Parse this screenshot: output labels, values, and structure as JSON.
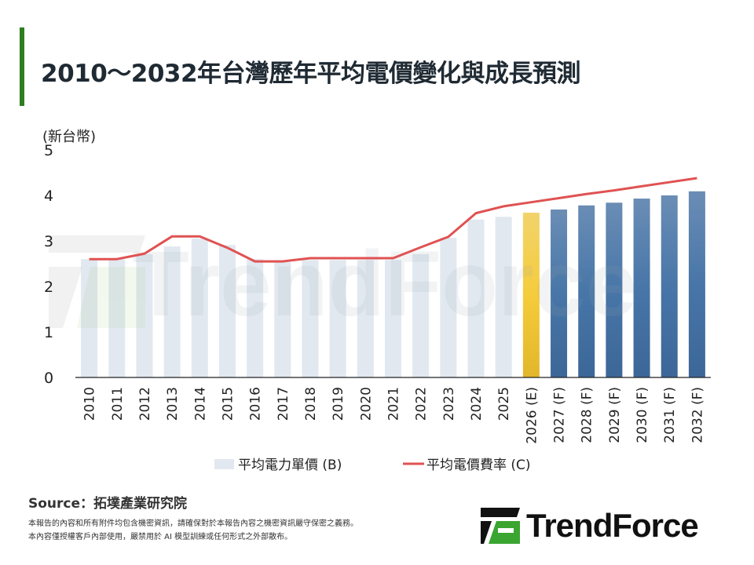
{
  "title": "2010～2032年台灣歷年平均電價變化與成長預測",
  "colors": {
    "accent": "#2e7d1e",
    "historical_bar": "#e1e8f0",
    "estimate_bar": "#f0c93a",
    "forecast_bar": "#4a74a6",
    "line": "#e05252"
  },
  "chart_data": {
    "type": "bar",
    "ylabel": "(新台幣)",
    "ylim": [
      0,
      5
    ],
    "yticks": [
      "0",
      "1",
      "2",
      "3",
      "4",
      "5"
    ],
    "grid": false,
    "legend_placement": "bottom",
    "categories": [
      "2010",
      "2011",
      "2012",
      "2013",
      "2014",
      "2015",
      "2016",
      "2017",
      "2018",
      "2019",
      "2020",
      "2021",
      "2022",
      "2023",
      "2024",
      "2025",
      "2026 (E)",
      "2027 (F)",
      "2028 (F)",
      "2029 (F)",
      "2030 (F)",
      "2031 (F)",
      "2032 (F)"
    ],
    "series": [
      {
        "name": "平均電力單價 (B)",
        "type": "bar",
        "values": [
          2.6,
          2.6,
          2.71,
          2.88,
          3.05,
          2.91,
          2.6,
          2.53,
          2.58,
          2.58,
          2.58,
          2.58,
          2.71,
          3.07,
          3.47,
          3.53,
          3.62,
          3.69,
          3.78,
          3.84,
          3.93,
          4.0,
          4.09
        ]
      },
      {
        "name": "平均電價費率 (C)",
        "type": "line",
        "values": [
          2.6,
          2.6,
          2.72,
          3.1,
          3.1,
          2.85,
          2.55,
          2.55,
          2.62,
          2.62,
          2.62,
          2.62,
          2.86,
          3.09,
          3.61,
          3.76,
          3.85,
          3.94,
          4.03,
          4.11,
          4.2,
          4.29,
          4.38
        ]
      }
    ]
  },
  "watermark": "TrendForce",
  "footer": {
    "source": "Source：拓墣產業研究院",
    "note1": "本報告的內容和所有附件均包含機密資訊，請確保對於本報告內容之機密資訊嚴守保密之義務。",
    "note2": "本內容僅授權客戶內部使用，嚴禁用於 AI 模型訓練或任何形式之外部散布。"
  },
  "logo": {
    "text": "TrendForce"
  }
}
